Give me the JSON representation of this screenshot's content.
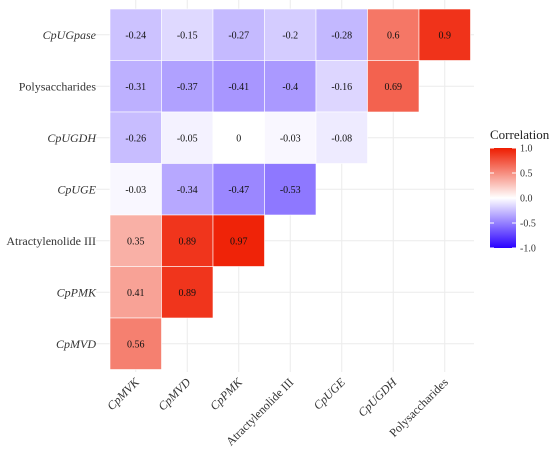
{
  "chart_data": {
    "type": "heatmap",
    "title": "",
    "xlabel": "",
    "ylabel": "",
    "x_categories": [
      "CpMVK",
      "CpMVD",
      "CpPMK",
      "Atractylenolide III",
      "CpUGE",
      "CpUGDH",
      "Polysaccharides"
    ],
    "y_categories": [
      "CpUGpase",
      "Polysaccharides",
      "CpUGDH",
      "CpUGE",
      "Atractylenolide III",
      "CpPMK",
      "CpMVD"
    ],
    "italic_labels": [
      "CpMVK",
      "CpMVD",
      "CpPMK",
      "CpUGE",
      "CpUGDH",
      "CpUGpase"
    ],
    "values": [
      [
        -0.24,
        -0.15,
        -0.27,
        -0.2,
        -0.28,
        0.6,
        0.9
      ],
      [
        -0.31,
        -0.37,
        -0.41,
        -0.4,
        -0.16,
        0.69,
        null
      ],
      [
        -0.26,
        -0.05,
        0,
        -0.03,
        -0.08,
        null,
        null
      ],
      [
        -0.03,
        -0.34,
        -0.47,
        -0.53,
        null,
        null,
        null
      ],
      [
        0.35,
        0.89,
        0.97,
        null,
        null,
        null,
        null
      ],
      [
        0.41,
        0.89,
        null,
        null,
        null,
        null,
        null
      ],
      [
        0.56,
        null,
        null,
        null,
        null,
        null,
        null
      ]
    ],
    "value_labels": [
      [
        "-0.24",
        "-0.15",
        "-0.27",
        "-0.2",
        "-0.28",
        "0.6",
        "0.9"
      ],
      [
        "-0.31",
        "-0.37",
        "-0.41",
        "-0.4",
        "-0.16",
        "0.69"
      ],
      [
        "-0.26",
        "-0.05",
        "0",
        "-0.03",
        "-0.08"
      ],
      [
        "-0.03",
        "-0.34",
        "-0.47",
        "-0.53"
      ],
      [
        "0.35",
        "0.89",
        "0.97"
      ],
      [
        "0.41",
        "0.89"
      ],
      [
        "0.56"
      ]
    ],
    "legend": {
      "title": "Correlation",
      "ticks": [
        "1.0",
        "0.5",
        "0.0",
        "-0.5",
        "-1.0"
      ],
      "tick_values": [
        1.0,
        0.5,
        0.0,
        -0.5,
        -1.0
      ],
      "range": [
        -1,
        1
      ],
      "colors": {
        "low": "#2a00ff",
        "mid": "#ffffff",
        "high": "#ee1c00"
      },
      "placement": "right"
    },
    "grid": true,
    "colors": {
      "grid": "#ececec",
      "background": "#ffffff"
    }
  }
}
